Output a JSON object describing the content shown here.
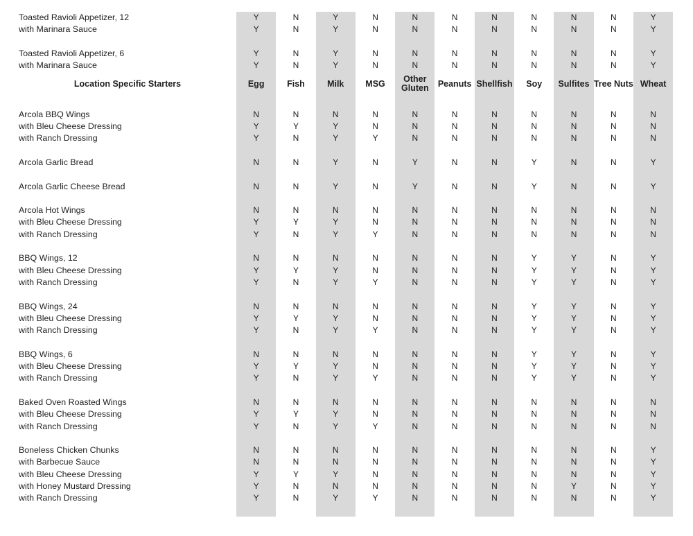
{
  "document": {
    "kind": "allergen-information-table"
  },
  "colors": {
    "column_shade": "#d9d9d9",
    "text": "#1f1f1f",
    "background": "#ffffff"
  },
  "table": {
    "section_header": "Location Specific Starters",
    "columns": [
      "Egg",
      "Fish",
      "Milk",
      "MSG",
      "Other Gluten",
      "Peanuts",
      "Shellfish",
      "Soy",
      "Sulfites",
      "Tree Nuts",
      "Wheat"
    ],
    "shaded_column_indexes": [
      0,
      2,
      4,
      6,
      8,
      10
    ],
    "value_legend": [
      "Y",
      "N"
    ],
    "rows": [
      {
        "name": "Toasted Ravioli Appetizer, 12",
        "values": [
          "Y",
          "N",
          "Y",
          "N",
          "N",
          "N",
          "N",
          "N",
          "N",
          "N",
          "Y"
        ]
      },
      {
        "name": "with Marinara Sauce",
        "values": [
          "Y",
          "N",
          "Y",
          "N",
          "N",
          "N",
          "N",
          "N",
          "N",
          "N",
          "Y"
        ]
      },
      {
        "type": "blank"
      },
      {
        "name": "Toasted Ravioli Appetizer, 6",
        "values": [
          "Y",
          "N",
          "Y",
          "N",
          "N",
          "N",
          "N",
          "N",
          "N",
          "N",
          "Y"
        ]
      },
      {
        "name": "with Marinara Sauce",
        "values": [
          "Y",
          "N",
          "Y",
          "N",
          "N",
          "N",
          "N",
          "N",
          "N",
          "N",
          "Y"
        ]
      },
      {
        "type": "header"
      },
      {
        "type": "blank"
      },
      {
        "name": "Arcola BBQ Wings",
        "values": [
          "N",
          "N",
          "N",
          "N",
          "N",
          "N",
          "N",
          "N",
          "N",
          "N",
          "N"
        ]
      },
      {
        "name": "with Bleu Cheese Dressing",
        "values": [
          "Y",
          "Y",
          "Y",
          "N",
          "N",
          "N",
          "N",
          "N",
          "N",
          "N",
          "N"
        ]
      },
      {
        "name": "with Ranch Dressing",
        "values": [
          "Y",
          "N",
          "Y",
          "Y",
          "N",
          "N",
          "N",
          "N",
          "N",
          "N",
          "N"
        ]
      },
      {
        "type": "blank"
      },
      {
        "name": "Arcola Garlic Bread",
        "values": [
          "N",
          "N",
          "Y",
          "N",
          "Y",
          "N",
          "N",
          "Y",
          "N",
          "N",
          "Y"
        ]
      },
      {
        "type": "blank"
      },
      {
        "name": "Arcola Garlic Cheese Bread",
        "values": [
          "N",
          "N",
          "Y",
          "N",
          "Y",
          "N",
          "N",
          "Y",
          "N",
          "N",
          "Y"
        ]
      },
      {
        "type": "blank"
      },
      {
        "name": "Arcola Hot Wings",
        "values": [
          "N",
          "N",
          "N",
          "N",
          "N",
          "N",
          "N",
          "N",
          "N",
          "N",
          "N"
        ]
      },
      {
        "name": "with Bleu Cheese Dressing",
        "values": [
          "Y",
          "Y",
          "Y",
          "N",
          "N",
          "N",
          "N",
          "N",
          "N",
          "N",
          "N"
        ]
      },
      {
        "name": "with Ranch Dressing",
        "values": [
          "Y",
          "N",
          "Y",
          "Y",
          "N",
          "N",
          "N",
          "N",
          "N",
          "N",
          "N"
        ]
      },
      {
        "type": "blank"
      },
      {
        "name": "BBQ Wings, 12",
        "values": [
          "N",
          "N",
          "N",
          "N",
          "N",
          "N",
          "N",
          "Y",
          "Y",
          "N",
          "Y"
        ]
      },
      {
        "name": "with Bleu Cheese Dressing",
        "values": [
          "Y",
          "Y",
          "Y",
          "N",
          "N",
          "N",
          "N",
          "Y",
          "Y",
          "N",
          "Y"
        ]
      },
      {
        "name": "with Ranch Dressing",
        "values": [
          "Y",
          "N",
          "Y",
          "Y",
          "N",
          "N",
          "N",
          "Y",
          "Y",
          "N",
          "Y"
        ]
      },
      {
        "type": "blank"
      },
      {
        "name": "BBQ Wings, 24",
        "values": [
          "N",
          "N",
          "N",
          "N",
          "N",
          "N",
          "N",
          "Y",
          "Y",
          "N",
          "Y"
        ]
      },
      {
        "name": "with Bleu Cheese Dressing",
        "values": [
          "Y",
          "Y",
          "Y",
          "N",
          "N",
          "N",
          "N",
          "Y",
          "Y",
          "N",
          "Y"
        ]
      },
      {
        "name": "with Ranch Dressing",
        "values": [
          "Y",
          "N",
          "Y",
          "Y",
          "N",
          "N",
          "N",
          "Y",
          "Y",
          "N",
          "Y"
        ]
      },
      {
        "type": "blank"
      },
      {
        "name": "BBQ Wings, 6",
        "values": [
          "N",
          "N",
          "N",
          "N",
          "N",
          "N",
          "N",
          "Y",
          "Y",
          "N",
          "Y"
        ]
      },
      {
        "name": "with Bleu Cheese Dressing",
        "values": [
          "Y",
          "Y",
          "Y",
          "N",
          "N",
          "N",
          "N",
          "Y",
          "Y",
          "N",
          "Y"
        ]
      },
      {
        "name": "with Ranch Dressing",
        "values": [
          "Y",
          "N",
          "Y",
          "Y",
          "N",
          "N",
          "N",
          "Y",
          "Y",
          "N",
          "Y"
        ]
      },
      {
        "type": "blank"
      },
      {
        "name": "Baked Oven Roasted Wings",
        "values": [
          "N",
          "N",
          "N",
          "N",
          "N",
          "N",
          "N",
          "N",
          "N",
          "N",
          "N"
        ]
      },
      {
        "name": "with Bleu Cheese Dressing",
        "values": [
          "Y",
          "Y",
          "Y",
          "N",
          "N",
          "N",
          "N",
          "N",
          "N",
          "N",
          "N"
        ]
      },
      {
        "name": "with Ranch Dressing",
        "values": [
          "Y",
          "N",
          "Y",
          "Y",
          "N",
          "N",
          "N",
          "N",
          "N",
          "N",
          "N"
        ]
      },
      {
        "type": "blank"
      },
      {
        "name": "Boneless Chicken Chunks",
        "values": [
          "N",
          "N",
          "N",
          "N",
          "N",
          "N",
          "N",
          "N",
          "N",
          "N",
          "Y"
        ]
      },
      {
        "name": "with Barbecue Sauce",
        "values": [
          "N",
          "N",
          "N",
          "N",
          "N",
          "N",
          "N",
          "N",
          "N",
          "N",
          "Y"
        ]
      },
      {
        "name": "with Bleu Cheese Dressing",
        "values": [
          "Y",
          "Y",
          "Y",
          "N",
          "N",
          "N",
          "N",
          "N",
          "N",
          "N",
          "Y"
        ]
      },
      {
        "name": "with Honey Mustard Dressing",
        "values": [
          "Y",
          "N",
          "N",
          "N",
          "N",
          "N",
          "N",
          "N",
          "Y",
          "N",
          "Y"
        ]
      },
      {
        "name": "with Ranch Dressing",
        "values": [
          "Y",
          "N",
          "Y",
          "Y",
          "N",
          "N",
          "N",
          "N",
          "N",
          "N",
          "Y"
        ]
      },
      {
        "type": "blank"
      }
    ]
  }
}
